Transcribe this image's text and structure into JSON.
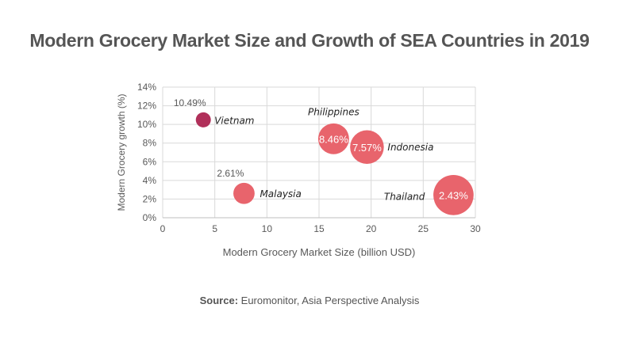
{
  "chart_data": {
    "type": "bubble",
    "title": "Modern Grocery Market Size and Growth of SEA Countries in 2019",
    "xlabel": "Modern Grocery Market Size (billion USD)",
    "ylabel": "Modern Grocery growth (%)",
    "xlim": [
      0,
      30
    ],
    "ylim": [
      0,
      14
    ],
    "xticks": [
      "0",
      "5",
      "10",
      "15",
      "20",
      "25",
      "30"
    ],
    "yticks": [
      "0%",
      "2%",
      "4%",
      "6%",
      "8%",
      "10%",
      "12%",
      "14%"
    ],
    "grid": true,
    "points": [
      {
        "name": "Vietnam",
        "x": 3.9,
        "y": 10.49,
        "label": "10.49%",
        "color": "#b0305a"
      },
      {
        "name": "Malaysia",
        "x": 7.8,
        "y": 2.61,
        "label": "2.61%",
        "color": "#e8646c"
      },
      {
        "name": "Philippines",
        "x": 16.4,
        "y": 8.46,
        "label": "8.46%",
        "color": "#e8646c"
      },
      {
        "name": "Indonesia",
        "x": 19.6,
        "y": 7.57,
        "label": "7.57%",
        "color": "#e8646c"
      },
      {
        "name": "Thailand",
        "x": 27.9,
        "y": 2.43,
        "label": "2.43%",
        "color": "#e8646c"
      }
    ]
  },
  "source": {
    "label": "Source:",
    "text": " Euromonitor, Asia Perspective Analysis"
  }
}
